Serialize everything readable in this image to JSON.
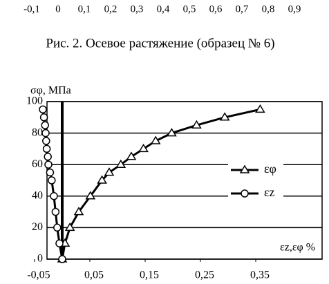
{
  "header_ticks": [
    "-0,1",
    "0",
    "0,1",
    "0,2",
    "0,3",
    "0,4",
    "0,5",
    "0,6",
    "0,7",
    "0,8",
    "0,9"
  ],
  "caption": "Рис. 2. Осевое растяжение (образец № 6)",
  "chart_data": {
    "type": "line",
    "y_label": "σφ, МПа",
    "x_label": "εz,εφ %",
    "xlim": [
      -0.05,
      0.47
    ],
    "ylim": [
      0,
      100
    ],
    "yticks": [
      0,
      20,
      40,
      60,
      80,
      100
    ],
    "xticks": [
      {
        "value": -0.05,
        "label": "-0,05"
      },
      {
        "value": 0.05,
        "label": "0,05"
      },
      {
        "value": 0.15,
        "label": "0,15"
      },
      {
        "value": 0.25,
        "label": "0,25"
      },
      {
        "value": 0.35,
        "label": "0,35"
      }
    ],
    "grid": true,
    "legend": "right",
    "series": [
      {
        "name": "εφ",
        "color": "#000000",
        "marker": "triangle",
        "x": [
          0.0,
          0.005,
          0.014,
          0.03,
          0.051,
          0.072,
          0.085,
          0.106,
          0.125,
          0.147,
          0.169,
          0.198,
          0.243,
          0.294,
          0.358
        ],
        "values": [
          0,
          10,
          20,
          30,
          40,
          50,
          55,
          60,
          65,
          70,
          75,
          80,
          85,
          90,
          95
        ]
      },
      {
        "name": "εz",
        "color": "#000000",
        "marker": "circle",
        "x": [
          0.0,
          -0.005,
          -0.009,
          -0.012,
          -0.015,
          -0.019,
          -0.022,
          -0.025,
          -0.026,
          -0.028,
          -0.029,
          -0.03,
          -0.031,
          -0.033,
          -0.035
        ],
        "values": [
          0,
          10,
          20,
          30,
          40,
          50,
          55,
          60,
          65,
          70,
          75,
          80,
          85,
          90,
          95
        ]
      }
    ]
  }
}
